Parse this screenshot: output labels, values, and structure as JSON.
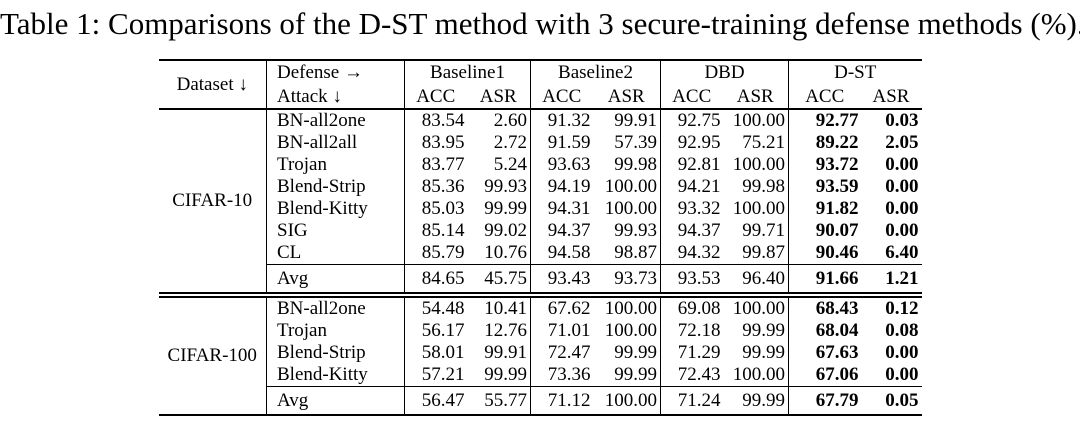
{
  "caption": "Table 1: Comparisons of the D-ST method with 3 secure-training defense methods (%).",
  "table": {
    "header": {
      "dataset_label": "Dataset ↓",
      "defense_label": "Defense →",
      "attack_label": "Attack ↓",
      "groups": [
        "Baseline1",
        "Baseline2",
        "DBD",
        "D-ST"
      ],
      "subheaders": [
        "ACC",
        "ASR"
      ]
    },
    "sections": [
      {
        "dataset": "CIFAR-10",
        "rows": [
          {
            "attack": "BN-all2one",
            "values": [
              "83.54",
              "2.60",
              "91.32",
              "99.91",
              "92.75",
              "100.00",
              "92.77",
              "0.03"
            ]
          },
          {
            "attack": "BN-all2all",
            "values": [
              "83.95",
              "2.72",
              "91.59",
              "57.39",
              "92.95",
              "75.21",
              "89.22",
              "2.05"
            ]
          },
          {
            "attack": "Trojan",
            "values": [
              "83.77",
              "5.24",
              "93.63",
              "99.98",
              "92.81",
              "100.00",
              "93.72",
              "0.00"
            ]
          },
          {
            "attack": "Blend-Strip",
            "values": [
              "85.36",
              "99.93",
              "94.19",
              "100.00",
              "94.21",
              "99.98",
              "93.59",
              "0.00"
            ]
          },
          {
            "attack": "Blend-Kitty",
            "values": [
              "85.03",
              "99.99",
              "94.31",
              "100.00",
              "93.32",
              "100.00",
              "91.82",
              "0.00"
            ]
          },
          {
            "attack": "SIG",
            "values": [
              "85.14",
              "99.02",
              "94.37",
              "99.93",
              "94.37",
              "99.71",
              "90.07",
              "0.00"
            ]
          },
          {
            "attack": "CL",
            "values": [
              "85.79",
              "10.76",
              "94.58",
              "98.87",
              "94.32",
              "99.87",
              "90.46",
              "6.40"
            ]
          }
        ],
        "avg": {
          "attack": "Avg",
          "values": [
            "84.65",
            "45.75",
            "93.43",
            "93.73",
            "93.53",
            "96.40",
            "91.66",
            "1.21"
          ]
        }
      },
      {
        "dataset": "CIFAR-100",
        "rows": [
          {
            "attack": "BN-all2one",
            "values": [
              "54.48",
              "10.41",
              "67.62",
              "100.00",
              "69.08",
              "100.00",
              "68.43",
              "0.12"
            ]
          },
          {
            "attack": "Trojan",
            "values": [
              "56.17",
              "12.76",
              "71.01",
              "100.00",
              "72.18",
              "99.99",
              "68.04",
              "0.08"
            ]
          },
          {
            "attack": "Blend-Strip",
            "values": [
              "58.01",
              "99.91",
              "72.47",
              "99.99",
              "71.29",
              "99.99",
              "67.63",
              "0.00"
            ]
          },
          {
            "attack": "Blend-Kitty",
            "values": [
              "57.21",
              "99.99",
              "73.36",
              "99.99",
              "72.43",
              "100.00",
              "67.06",
              "0.00"
            ]
          }
        ],
        "avg": {
          "attack": "Avg",
          "values": [
            "56.47",
            "55.77",
            "71.12",
            "100.00",
            "71.24",
            "99.99",
            "67.79",
            "0.05"
          ]
        }
      }
    ]
  }
}
